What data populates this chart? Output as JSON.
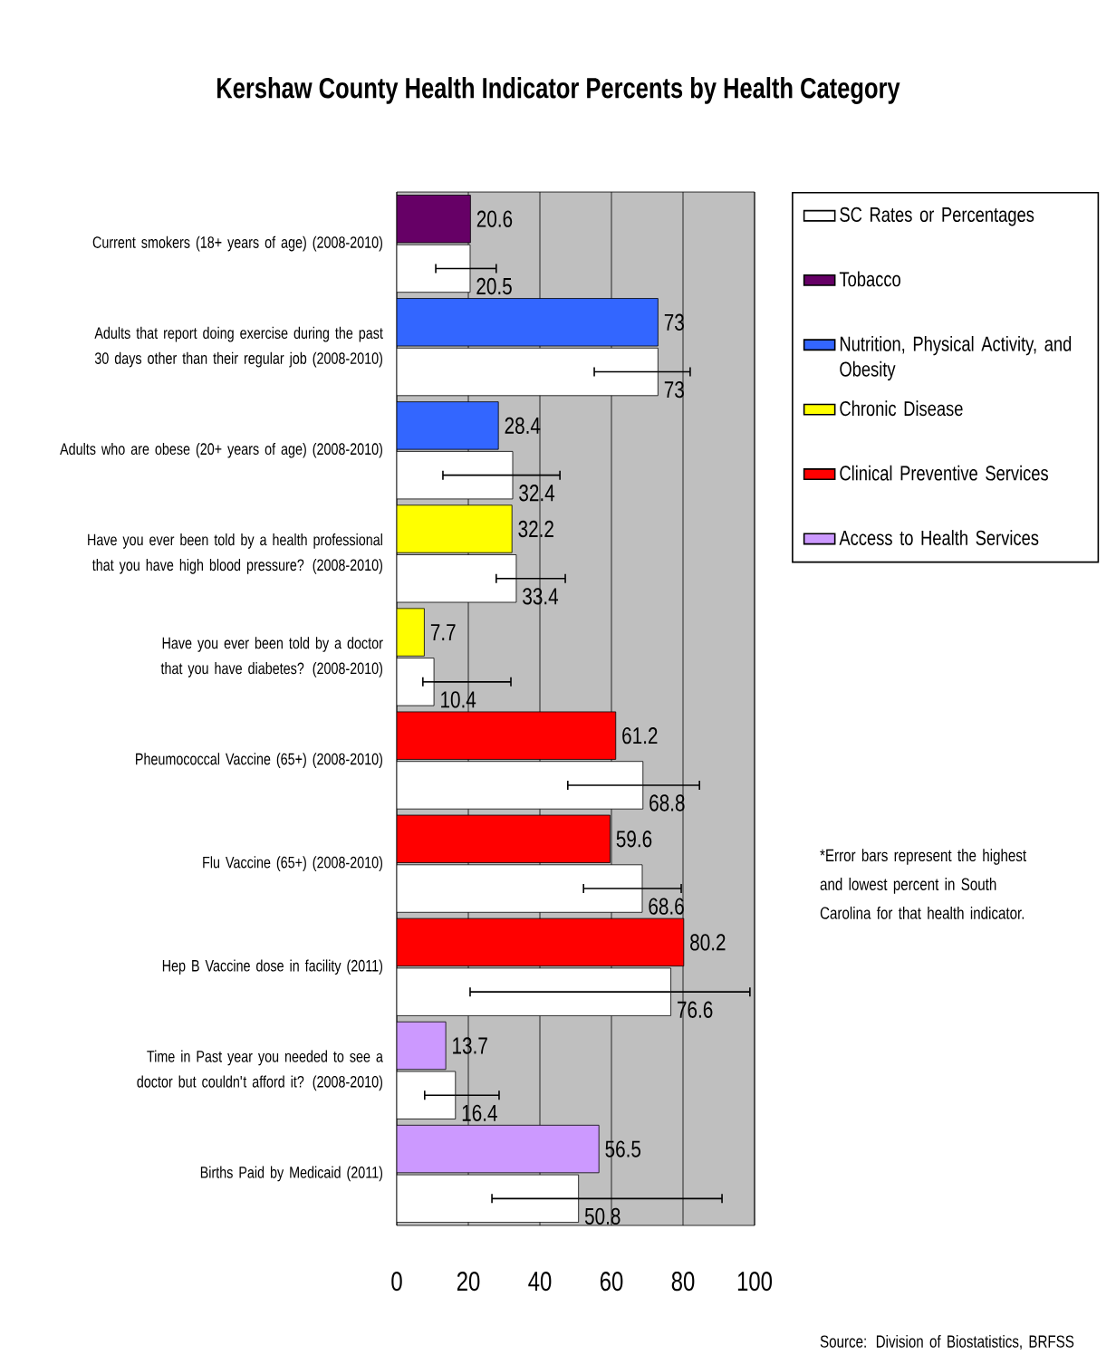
{
  "chart_data": {
    "type": "bar",
    "orientation": "horizontal",
    "title": "Kershaw County Health Indicator Percents by Health Category",
    "categories": [
      "Current smokers (18+ years of age) (2008-2010)",
      "Adults that report doing exercise during the past 30 days other than their regular job (2008-2010)",
      "Adults who are obese (20+ years of age) (2008-2010)",
      "Have you ever been told by a health professional that you have high blood pressure? (2008-2010)",
      "Have you ever been told by a doctor that you have diabetes? (2008-2010)",
      "Pheumococcal Vaccine (65+) (2008-2010)",
      "Flu Vaccine (65+) (2008-2010)",
      "Hep B Vaccine dose in facility (2011)",
      "Time in Past year you needed to see a doctor but couldn't afford it? (2008-2010)",
      "Births Paid by Medicaid (2011)"
    ],
    "series": [
      {
        "name": "SC Rates or Percentages",
        "color": "#ffffff",
        "values": [
          20.5,
          73,
          32.4,
          33.4,
          10.4,
          68.8,
          68.6,
          76.6,
          16.4,
          50.8
        ],
        "errors": [
          [
            10.9,
            27.8
          ],
          [
            55.2,
            82.0
          ],
          [
            12.9,
            45.6
          ],
          [
            27.8,
            47.1
          ],
          [
            7.3,
            31.9
          ],
          [
            47.8,
            84.6
          ],
          [
            52.2,
            79.5
          ],
          [
            20.5,
            98.7
          ],
          [
            7.8,
            28.6
          ],
          [
            26.6,
            90.9
          ]
        ]
      },
      {
        "name": "Tobacco",
        "color": "#660066",
        "values": [
          20.6,
          null,
          null,
          null,
          null,
          null,
          null,
          null,
          null,
          null
        ]
      },
      {
        "name": "Nutrition, Physical Activity, and Obesity",
        "color": "#3366ff",
        "values": [
          null,
          73,
          28.4,
          null,
          null,
          null,
          null,
          null,
          null,
          null
        ]
      },
      {
        "name": "Chronic Disease",
        "color": "#ffff00",
        "values": [
          null,
          null,
          null,
          32.2,
          7.7,
          null,
          null,
          null,
          null,
          null
        ]
      },
      {
        "name": "Clinical Preventive Services",
        "color": "#ff0000",
        "values": [
          null,
          null,
          null,
          null,
          null,
          61.2,
          59.6,
          80.2,
          null,
          null
        ]
      },
      {
        "name": "Access to Health Services",
        "color": "#cc99ff",
        "values": [
          null,
          null,
          null,
          null,
          null,
          null,
          null,
          null,
          13.7,
          56.5
        ]
      }
    ],
    "xlim": [
      0,
      100
    ],
    "xticks": [
      0,
      20,
      40,
      60,
      80,
      100
    ],
    "grid": "x",
    "legend": "right",
    "data_labels": true,
    "annotations": [
      "*Error bars represent the highest and lowest percent in South Carolina for that health indicator.",
      "Source:  Division of Biostatistics, BRFSS"
    ]
  }
}
